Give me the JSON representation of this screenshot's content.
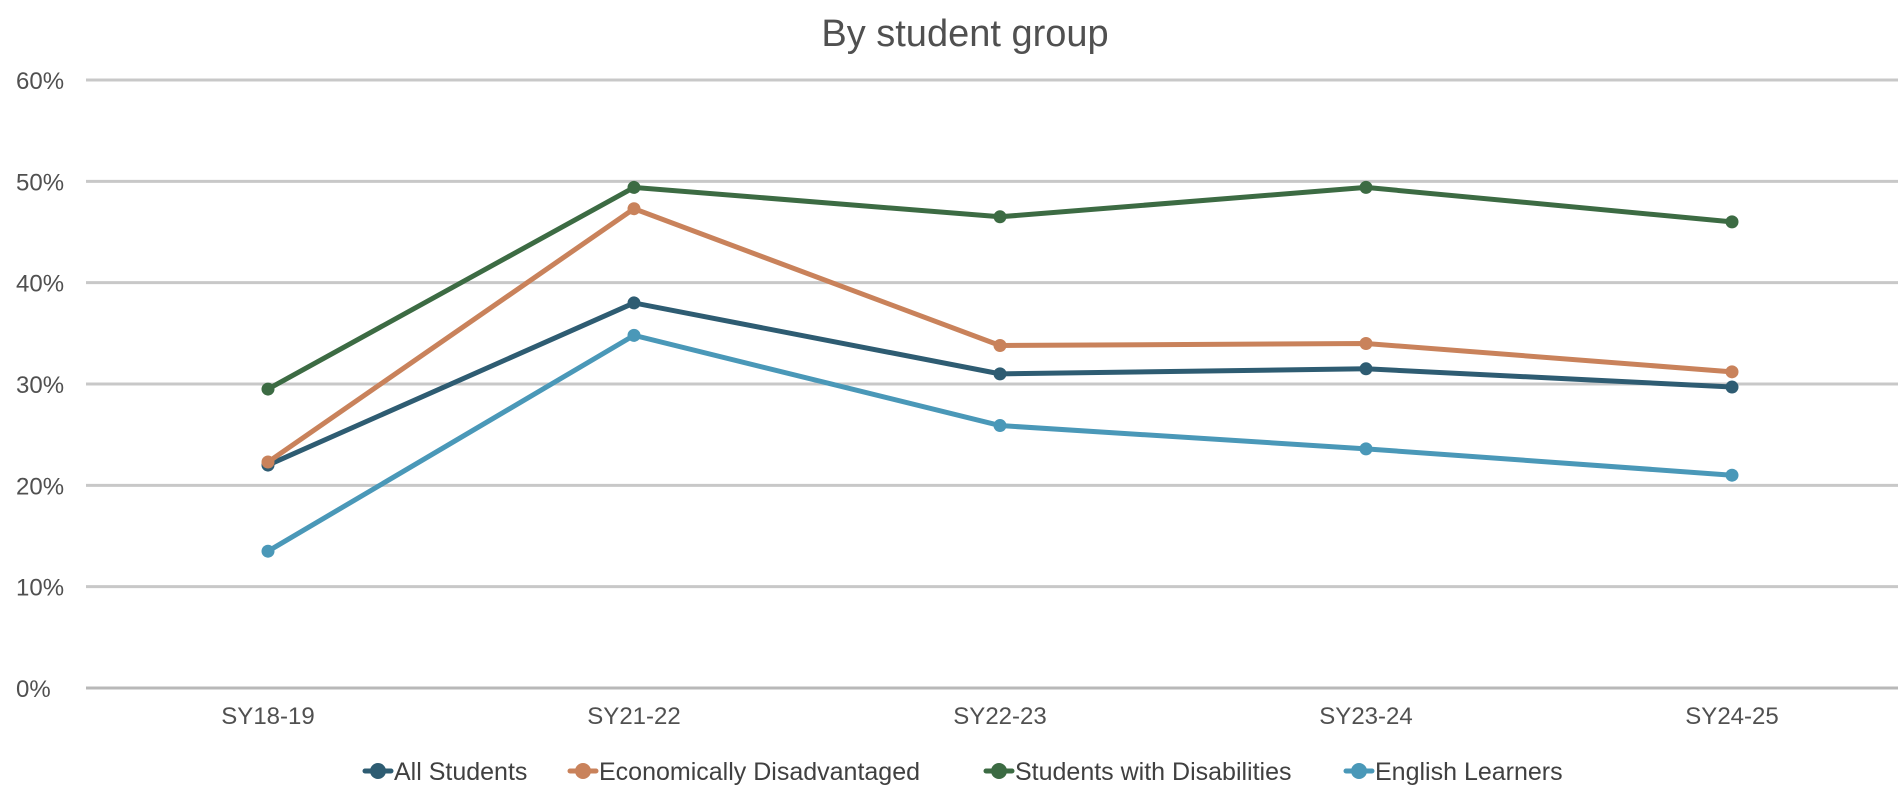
{
  "chart_data": {
    "type": "line",
    "title": "By student group",
    "xlabel": "",
    "ylabel": "",
    "ylim": [
      0,
      60
    ],
    "y_tick_step": 10,
    "y_tick_format": "percent",
    "y_ticks": [
      "0%",
      "10%",
      "20%",
      "30%",
      "40%",
      "50%",
      "60%"
    ],
    "grid": true,
    "legend_position": "bottom",
    "categories": [
      "SY18-19",
      "SY21-22",
      "SY22-23",
      "SY23-24",
      "SY24-25"
    ],
    "series": [
      {
        "name": "All Students",
        "color": "#2e5c72",
        "values": [
          22,
          38,
          31,
          31.5,
          29.7
        ]
      },
      {
        "name": "Economically Disadvantaged",
        "color": "#c9825b",
        "values": [
          22.3,
          47.3,
          33.8,
          34,
          31.2
        ]
      },
      {
        "name": "Students with Disabilities",
        "color": "#3c6b43",
        "values": [
          29.5,
          49.4,
          46.5,
          49.4,
          46
        ]
      },
      {
        "name": "English Learners",
        "color": "#4a98b8",
        "values": [
          13.5,
          34.8,
          25.9,
          23.6,
          21
        ]
      }
    ]
  }
}
